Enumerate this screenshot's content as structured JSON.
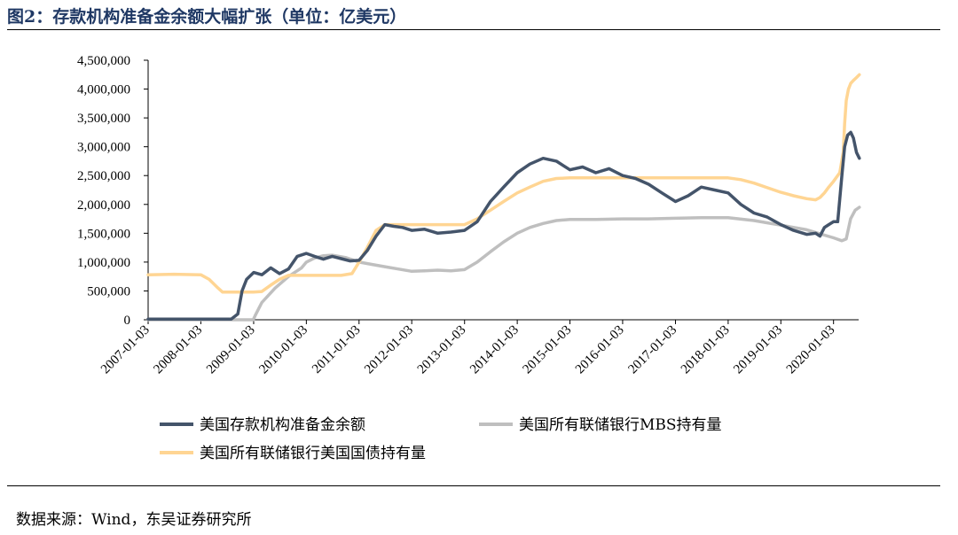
{
  "figure": {
    "title": "图2：存款机构准备金余额大幅扩张（单位：亿美元）",
    "source": "数据来源：Wind，东吴证券研究所"
  },
  "chart_data": {
    "type": "line",
    "title": "存款机构准备金余额大幅扩张",
    "unit": "亿美元",
    "xlabel": "",
    "ylabel": "",
    "x_ticks": [
      "2007-01-03",
      "2008-01-03",
      "2009-01-03",
      "2010-01-03",
      "2011-01-03",
      "2012-01-03",
      "2013-01-03",
      "2014-01-03",
      "2015-01-03",
      "2016-01-03",
      "2017-01-03",
      "2018-01-03",
      "2019-01-03",
      "2020-01-03"
    ],
    "xlim": [
      "2007-01-03",
      "2020-06-30"
    ],
    "ylim": [
      0,
      4500000
    ],
    "y_ticks": [
      0,
      500000,
      1000000,
      1500000,
      2000000,
      2500000,
      3000000,
      3500000,
      4000000,
      4500000
    ],
    "y_tick_labels": [
      "0",
      "500,000",
      "1,000,000",
      "1,500,000",
      "2,000,000",
      "2,500,000",
      "3,000,000",
      "3,500,000",
      "4,000,000",
      "4,500,000"
    ],
    "grid": false,
    "legend_position": "bottom",
    "series": [
      {
        "name": "美国存款机构准备金余额",
        "color": "#44546a",
        "x": [
          "2007-01-03",
          "2007-07-01",
          "2008-01-03",
          "2008-08-01",
          "2008-09-15",
          "2008-10-15",
          "2008-11-15",
          "2009-01-03",
          "2009-03-01",
          "2009-05-01",
          "2009-07-01",
          "2009-09-01",
          "2009-11-01",
          "2010-01-03",
          "2010-03-01",
          "2010-05-01",
          "2010-07-01",
          "2010-09-01",
          "2010-11-01",
          "2011-01-03",
          "2011-03-01",
          "2011-05-01",
          "2011-07-01",
          "2011-09-01",
          "2011-11-01",
          "2012-01-03",
          "2012-04-01",
          "2012-07-01",
          "2012-10-01",
          "2013-01-03",
          "2013-04-01",
          "2013-07-01",
          "2013-10-01",
          "2014-01-03",
          "2014-04-01",
          "2014-07-01",
          "2014-10-01",
          "2015-01-03",
          "2015-04-01",
          "2015-07-01",
          "2015-10-01",
          "2016-01-03",
          "2016-04-01",
          "2016-07-01",
          "2016-10-01",
          "2017-01-03",
          "2017-04-01",
          "2017-07-01",
          "2017-10-01",
          "2018-01-03",
          "2018-04-01",
          "2018-07-01",
          "2018-10-01",
          "2019-01-03",
          "2019-04-01",
          "2019-07-01",
          "2019-09-01",
          "2019-10-01",
          "2019-11-01",
          "2019-12-01",
          "2020-01-03",
          "2020-02-01",
          "2020-03-01",
          "2020-03-20",
          "2020-04-10",
          "2020-05-01",
          "2020-05-20",
          "2020-06-10",
          "2020-06-30"
        ],
        "values": [
          10000,
          10000,
          10000,
          12000,
          100000,
          500000,
          700000,
          820000,
          780000,
          900000,
          800000,
          880000,
          1100000,
          1150000,
          1100000,
          1050000,
          1100000,
          1060000,
          1020000,
          1030000,
          1200000,
          1450000,
          1650000,
          1620000,
          1600000,
          1550000,
          1570000,
          1500000,
          1520000,
          1550000,
          1700000,
          2050000,
          2300000,
          2550000,
          2700000,
          2800000,
          2750000,
          2600000,
          2650000,
          2550000,
          2620000,
          2500000,
          2450000,
          2350000,
          2200000,
          2050000,
          2150000,
          2300000,
          2250000,
          2200000,
          2000000,
          1850000,
          1780000,
          1650000,
          1550000,
          1480000,
          1500000,
          1450000,
          1600000,
          1650000,
          1700000,
          1700000,
          2500000,
          3000000,
          3200000,
          3250000,
          3150000,
          2900000,
          2800000
        ]
      },
      {
        "name": "美国所有联储银行MBS持有量",
        "color": "#bfbfbf",
        "x": [
          "2007-01-03",
          "2008-01-03",
          "2008-12-31",
          "2009-01-15",
          "2009-03-01",
          "2009-06-01",
          "2009-09-01",
          "2009-12-01",
          "2010-01-03",
          "2010-03-01",
          "2010-05-01",
          "2010-07-01",
          "2010-10-01",
          "2011-01-03",
          "2011-04-01",
          "2011-07-01",
          "2011-10-01",
          "2012-01-03",
          "2012-04-01",
          "2012-07-01",
          "2012-10-01",
          "2013-01-03",
          "2013-04-01",
          "2013-07-01",
          "2013-10-01",
          "2014-01-03",
          "2014-04-01",
          "2014-07-01",
          "2014-10-01",
          "2015-01-03",
          "2015-07-01",
          "2016-01-03",
          "2016-07-01",
          "2017-01-03",
          "2017-07-01",
          "2018-01-03",
          "2018-07-01",
          "2019-01-03",
          "2019-07-01",
          "2020-01-03",
          "2020-03-01",
          "2020-03-31",
          "2020-04-30",
          "2020-06-01",
          "2020-06-30"
        ],
        "values": [
          0,
          0,
          0,
          80000,
          300000,
          550000,
          750000,
          900000,
          1000000,
          1070000,
          1110000,
          1120000,
          1080000,
          1000000,
          960000,
          920000,
          880000,
          840000,
          850000,
          860000,
          850000,
          870000,
          1000000,
          1180000,
          1350000,
          1500000,
          1600000,
          1670000,
          1720000,
          1740000,
          1740000,
          1750000,
          1750000,
          1760000,
          1770000,
          1770000,
          1720000,
          1640000,
          1560000,
          1420000,
          1370000,
          1400000,
          1750000,
          1900000,
          1950000
        ]
      },
      {
        "name": "美国所有联储银行美国国债持有量",
        "color": "#ffd593",
        "x": [
          "2007-01-03",
          "2007-07-01",
          "2008-01-03",
          "2008-03-01",
          "2008-05-01",
          "2008-06-01",
          "2008-12-31",
          "2009-03-01",
          "2009-05-01",
          "2009-07-01",
          "2009-09-01",
          "2009-12-01",
          "2010-07-01",
          "2010-09-01",
          "2010-11-15",
          "2011-01-03",
          "2011-03-01",
          "2011-05-01",
          "2011-07-01",
          "2012-01-03",
          "2012-07-01",
          "2013-01-03",
          "2013-04-01",
          "2013-07-01",
          "2013-10-01",
          "2014-01-03",
          "2014-04-01",
          "2014-07-01",
          "2014-10-01",
          "2015-01-03",
          "2016-01-03",
          "2017-01-03",
          "2018-01-03",
          "2018-04-01",
          "2018-07-01",
          "2018-10-01",
          "2019-01-03",
          "2019-04-01",
          "2019-07-01",
          "2019-09-01",
          "2019-10-01",
          "2019-11-01",
          "2019-12-01",
          "2020-01-03",
          "2020-02-15",
          "2020-03-10",
          "2020-03-20",
          "2020-03-31",
          "2020-04-15",
          "2020-05-01",
          "2020-05-20",
          "2020-06-10",
          "2020-06-30"
        ],
        "values": [
          780000,
          790000,
          780000,
          700000,
          550000,
          480000,
          480000,
          490000,
          600000,
          700000,
          770000,
          770000,
          770000,
          770000,
          800000,
          1000000,
          1250000,
          1550000,
          1650000,
          1650000,
          1650000,
          1650000,
          1750000,
          1900000,
          2050000,
          2200000,
          2300000,
          2400000,
          2450000,
          2460000,
          2460000,
          2460000,
          2460000,
          2430000,
          2370000,
          2290000,
          2210000,
          2150000,
          2100000,
          2080000,
          2120000,
          2200000,
          2300000,
          2400000,
          2550000,
          2900000,
          3400000,
          3800000,
          4000000,
          4100000,
          4150000,
          4200000,
          4250000
        ]
      }
    ]
  }
}
